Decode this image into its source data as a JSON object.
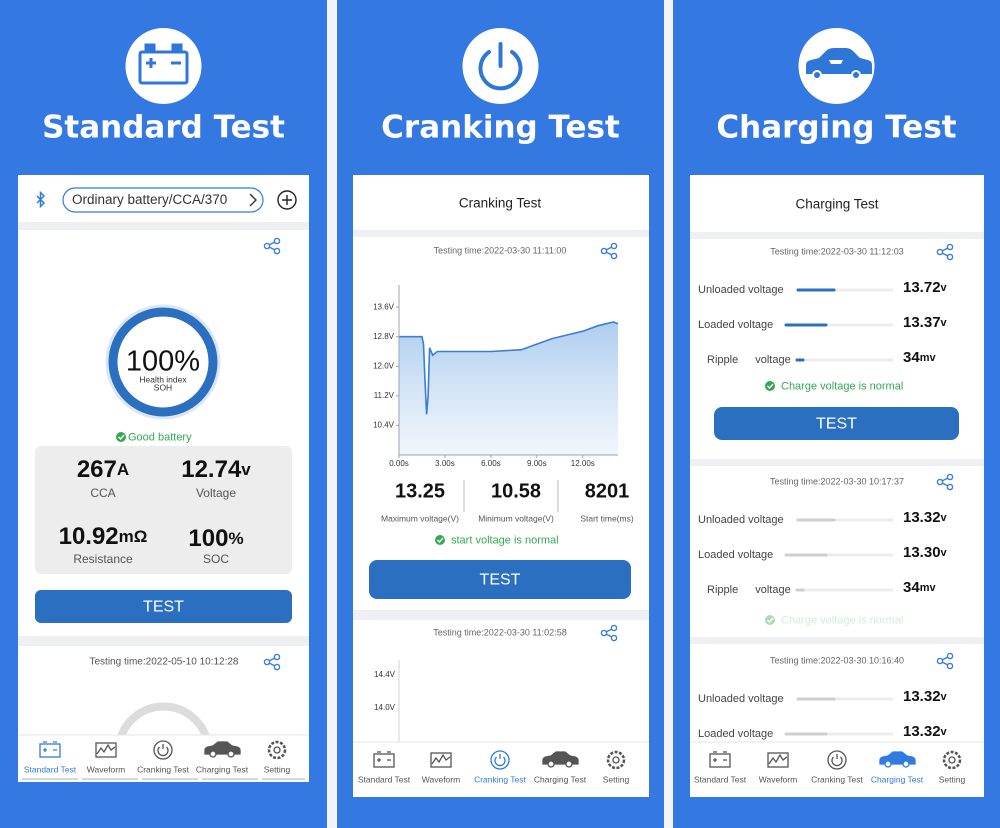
{
  "standard": {
    "title": "Standard Test",
    "battery_type": "Ordinary battery/CCA/370",
    "soh_value": "100%",
    "soh_caption": "Health index",
    "soh_label": "SOH",
    "status": "Good battery",
    "metrics": [
      {
        "value": "267",
        "unit": "A",
        "label": "CCA"
      },
      {
        "value": "12.74",
        "unit": "v",
        "label": "Voltage"
      },
      {
        "value": "10.92",
        "unit": "mΩ",
        "label": "Resistance"
      },
      {
        "value": "100",
        "unit": "%",
        "label": "SOC"
      }
    ],
    "button": "TEST",
    "history_time": "Testing time:2022-05-10 10:12:28",
    "active_tab": 0
  },
  "cranking": {
    "title": "Cranking Test",
    "header": "Cranking Test",
    "time": "Testing time:2022-03-30 11:11:00",
    "chart": {
      "type": "line",
      "x": [
        0,
        1.5,
        1.6,
        1.7,
        1.8,
        1.9,
        2.0,
        2.2,
        2.5,
        4,
        6,
        8,
        9,
        10,
        11,
        12,
        13,
        14,
        14.3
      ],
      "values": [
        12.8,
        12.8,
        12.6,
        11.6,
        10.7,
        11.2,
        12.5,
        12.3,
        12.4,
        12.4,
        12.4,
        12.45,
        12.6,
        12.75,
        12.85,
        12.95,
        13.1,
        13.2,
        13.15
      ],
      "color": "#3b7fd0",
      "xlim": [
        0,
        14.3
      ],
      "ylim": [
        9.6,
        14.2
      ],
      "yticks": [
        {
          "value": 13.6,
          "label": "13.6V"
        },
        {
          "value": 12.8,
          "label": "12.8V"
        },
        {
          "value": 12.0,
          "label": "12.0V"
        },
        {
          "value": 11.2,
          "label": "11.2V"
        },
        {
          "value": 10.4,
          "label": "10.4V"
        }
      ],
      "xticks": [
        {
          "value": 0,
          "label": "0.00s"
        },
        {
          "value": 3,
          "label": "3.00s"
        },
        {
          "value": 6,
          "label": "6.00s"
        },
        {
          "value": 9,
          "label": "9.00s"
        },
        {
          "value": 12,
          "label": "12.00s"
        }
      ]
    },
    "stats": [
      {
        "value": "13.25",
        "label": "Maximum voltage(V)"
      },
      {
        "value": "10.58",
        "label": "Minimum voltage(V)"
      },
      {
        "value": "8201",
        "label": "Start time(ms)"
      }
    ],
    "status": "start voltage is normal",
    "button": "TEST",
    "history_time": "Testing time:2022-03-30 11:02:58",
    "history_yticks": [
      "14.4V",
      "14.0V"
    ],
    "active_tab": 2
  },
  "charging": {
    "title": "Charging Test",
    "header": "Charging Test",
    "records": [
      {
        "time": "Testing time:2022-03-30 11:12:03",
        "rows": [
          {
            "label": "Unloaded voltage",
            "value": "13.72",
            "unit": "v"
          },
          {
            "label": "Loaded voltage",
            "value": "13.37",
            "unit": "v"
          },
          {
            "label": "Ripple voltage",
            "value": "34",
            "unit": "mv"
          }
        ],
        "status": "Charge voltage is normal"
      },
      {
        "time": "Testing time:2022-03-30 10:17:37",
        "rows": [
          {
            "label": "Unloaded voltage",
            "value": "13.32",
            "unit": "v"
          },
          {
            "label": "Loaded voltage",
            "value": "13.30",
            "unit": "v"
          },
          {
            "label": "Ripple voltage",
            "value": "34",
            "unit": "mv"
          }
        ],
        "status": "Charge voltage is normal"
      },
      {
        "time": "Testing time:2022-03-30 10:16:40",
        "rows": [
          {
            "label": "Unloaded voltage",
            "value": "13.32",
            "unit": "v"
          },
          {
            "label": "Loaded voltage",
            "value": "13.32",
            "unit": "v"
          }
        ]
      }
    ],
    "button": "TEST",
    "active_tab": 3
  },
  "tabs": [
    "Standard Test",
    "Waveform",
    "Cranking Test",
    "Charging Test",
    "Setting"
  ]
}
